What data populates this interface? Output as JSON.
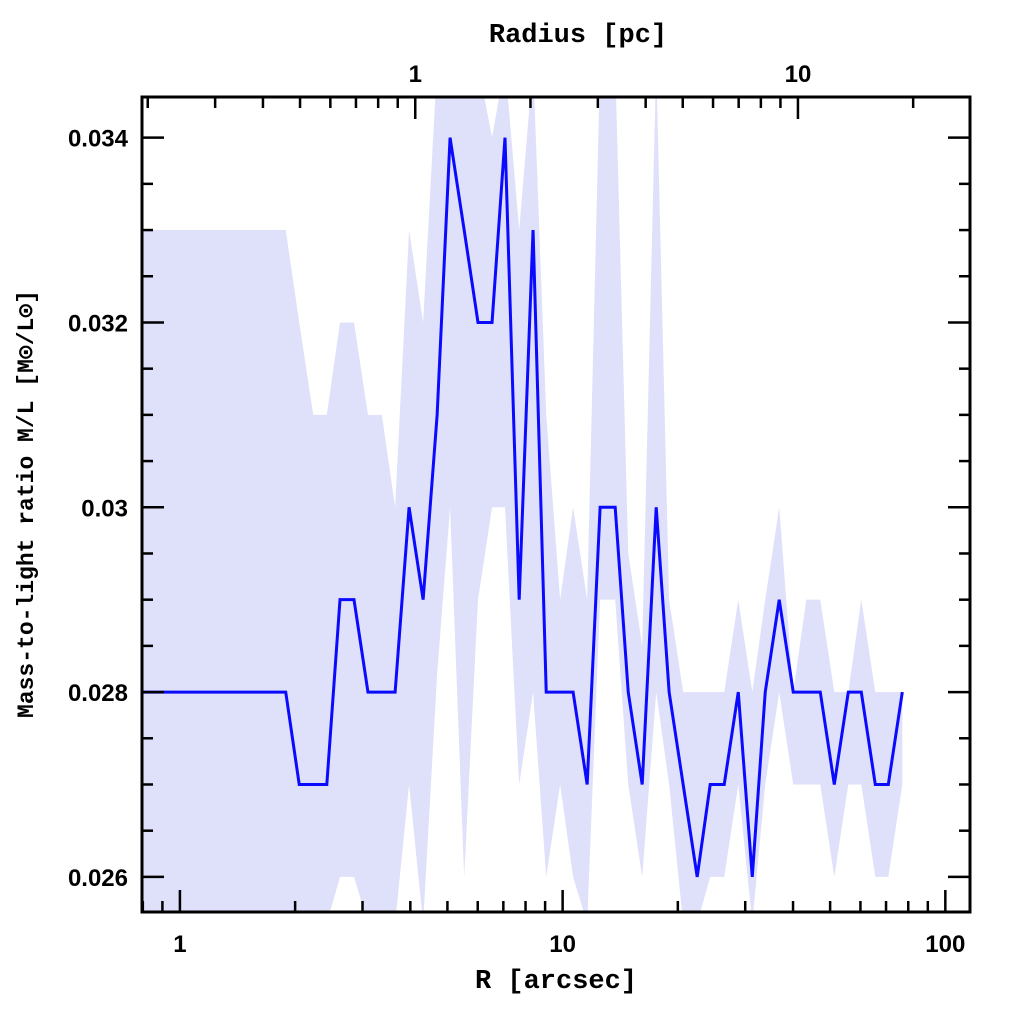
{
  "chart_data": {
    "type": "line",
    "title": "",
    "xlabel": "R [arcsec]",
    "ylabel": "Mass-to-light ratio M/L [M⊙/L⊙]",
    "x2label": "Radius [pc]",
    "xscale": "log",
    "xlim": [
      0.796,
      116
    ],
    "ylim": [
      0.02562,
      0.03444
    ],
    "grid": false,
    "legend": "none",
    "x_ticks": [
      1,
      10,
      100
    ],
    "x_tick_labels": [
      "1",
      "10",
      "100"
    ],
    "y_ticks": [
      0.026,
      0.028,
      0.03,
      0.032,
      0.034
    ],
    "y_tick_labels": [
      "0.026",
      "0.028",
      "0.03",
      "0.032",
      "0.034"
    ],
    "x2_arcsec_per_pc": 4.12,
    "x2_ticks": [
      1,
      10
    ],
    "x2_tick_labels": [
      "1",
      "10"
    ],
    "colors": {
      "line": "#0a0aff",
      "band": "#dfe0fa"
    },
    "series": [
      {
        "name": "M/L",
        "x": [
          0.796,
          1.89,
          2.05,
          2.23,
          2.42,
          2.62,
          2.85,
          3.1,
          3.37,
          3.65,
          3.97,
          4.32,
          4.7,
          5.08,
          5.53,
          6.01,
          6.54,
          7.07,
          7.7,
          8.37,
          9.06,
          9.85,
          10.65,
          11.59,
          12.53,
          13.72,
          14.84,
          16.14,
          17.56,
          18.98,
          20.65,
          22.47,
          24.3,
          26.44,
          28.77,
          31.3,
          33.84,
          36.81,
          40.05,
          43.32,
          47.12,
          51.27,
          55.78,
          60.31,
          65.61,
          70.96,
          77.2
        ],
        "y": [
          0.028,
          0.028,
          0.027,
          0.027,
          0.027,
          0.029,
          0.029,
          0.028,
          0.028,
          0.028,
          0.03,
          0.029,
          0.031,
          0.034,
          0.033,
          0.032,
          0.032,
          0.034,
          0.029,
          0.033,
          0.028,
          0.028,
          0.028,
          0.027,
          0.03,
          0.03,
          0.028,
          0.027,
          0.03,
          0.028,
          0.027,
          0.026,
          0.027,
          0.027,
          0.028,
          0.026,
          0.028,
          0.029,
          0.028,
          0.028,
          0.028,
          0.027,
          0.028,
          0.028,
          0.027,
          0.027,
          0.028
        ],
        "upper": [
          0.033,
          0.033,
          0.032,
          0.031,
          0.031,
          0.032,
          0.032,
          0.031,
          0.031,
          0.03,
          0.033,
          0.032,
          0.0348,
          0.0348,
          0.0348,
          0.0348,
          0.034,
          0.0348,
          0.033,
          0.0348,
          0.031,
          0.029,
          0.03,
          0.029,
          0.0348,
          0.0348,
          0.0295,
          0.0285,
          0.0348,
          0.029,
          0.028,
          0.028,
          0.028,
          0.028,
          0.029,
          0.028,
          0.029,
          0.03,
          0.028,
          0.029,
          0.029,
          0.028,
          0.028,
          0.029,
          0.028,
          0.028,
          0.028
        ],
        "lower": [
          0.0255,
          0.0255,
          0.0255,
          0.0255,
          0.0255,
          0.026,
          0.026,
          0.0255,
          0.0255,
          0.0255,
          0.027,
          0.0255,
          0.0282,
          0.03,
          0.026,
          0.029,
          0.03,
          0.03,
          0.027,
          0.028,
          0.026,
          0.027,
          0.026,
          0.0255,
          0.029,
          0.029,
          0.027,
          0.026,
          0.028,
          0.027,
          0.0255,
          0.0255,
          0.026,
          0.026,
          0.027,
          0.0255,
          0.027,
          0.028,
          0.027,
          0.027,
          0.027,
          0.026,
          0.027,
          0.027,
          0.026,
          0.026,
          0.027
        ]
      }
    ]
  }
}
